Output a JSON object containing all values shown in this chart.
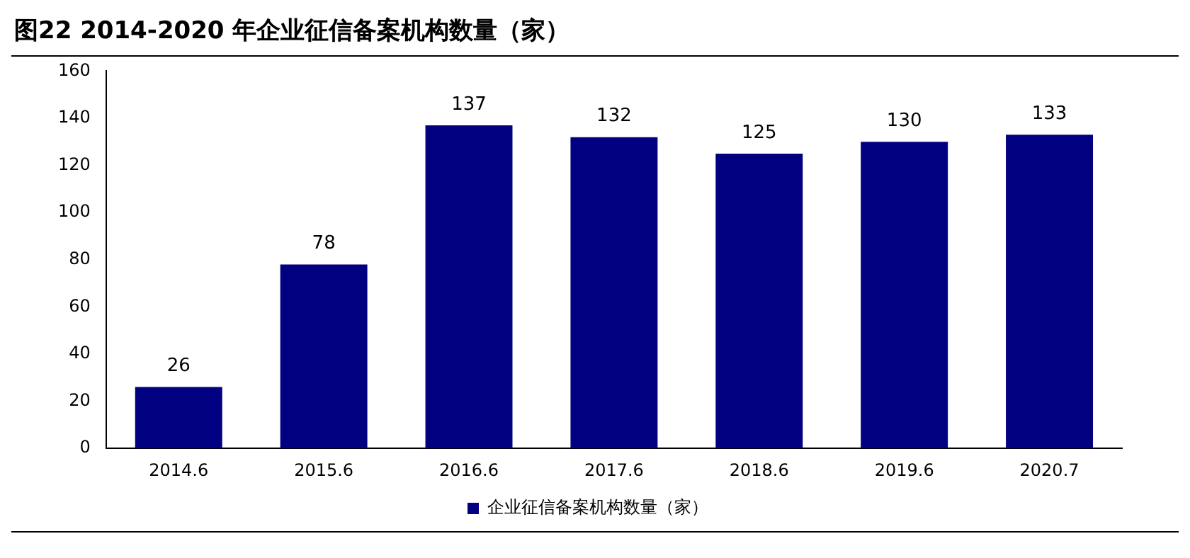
{
  "chart_data": {
    "type": "bar",
    "title": "图22  2014-2020 年企业征信备案机构数量（家）",
    "categories": [
      "2014.6",
      "2015.6",
      "2016.6",
      "2017.6",
      "2018.6",
      "2019.6",
      "2020.7"
    ],
    "series": [
      {
        "name": "企业征信备案机构数量（家）",
        "color": "#000080",
        "values": [
          26,
          78,
          137,
          132,
          125,
          130,
          133
        ]
      }
    ],
    "ylim": [
      0,
      160
    ],
    "yticks": [
      0,
      20,
      40,
      60,
      80,
      100,
      120,
      140,
      160
    ],
    "grid": false,
    "legend": "bottom",
    "data_labels": true
  }
}
